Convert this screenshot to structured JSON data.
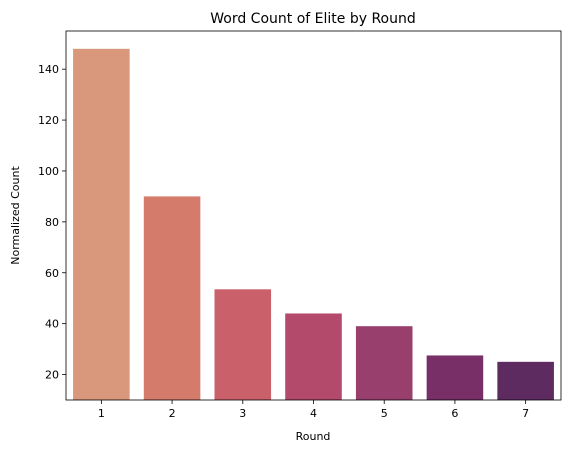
{
  "chart_data": {
    "type": "bar",
    "title": "Word Count of Elite by Round",
    "xlabel": "Round",
    "ylabel": "Normalized Count",
    "categories": [
      "1",
      "2",
      "3",
      "4",
      "5",
      "6",
      "7"
    ],
    "values": [
      148,
      90,
      53.5,
      44,
      39,
      27.5,
      25
    ],
    "colors": [
      "#d9987b",
      "#d57b6b",
      "#c9606a",
      "#b3496b",
      "#983f6e",
      "#782e67",
      "#5e2b60"
    ],
    "ylim": [
      10,
      155
    ],
    "yticks": [
      20,
      40,
      60,
      80,
      100,
      120,
      140
    ],
    "grid": false,
    "legend": "none"
  }
}
